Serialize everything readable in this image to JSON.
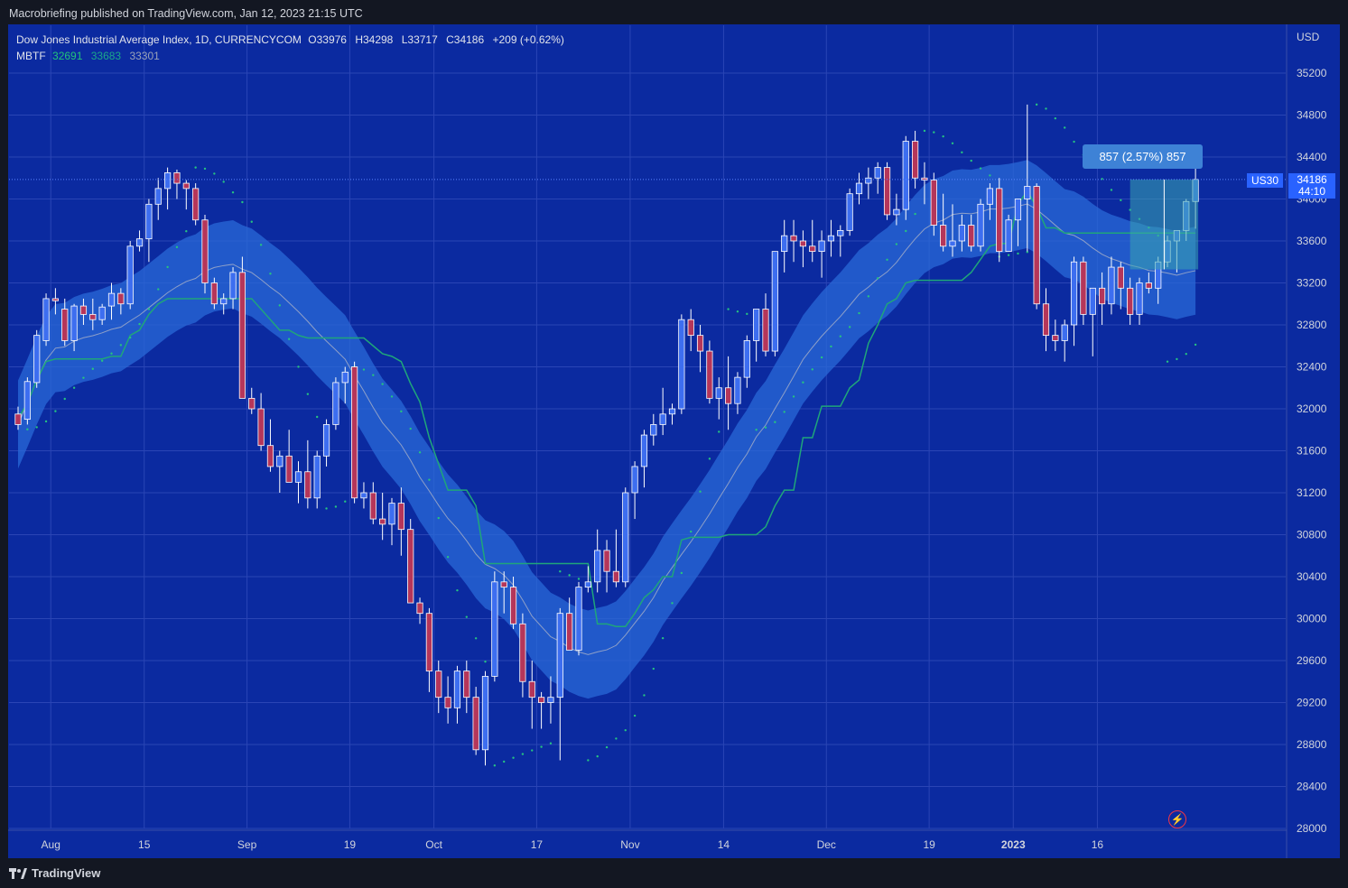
{
  "header": {
    "published": "Macrobriefing published on TradingView.com, Jan 12, 2023 21:15 UTC"
  },
  "legend": {
    "title": "Dow Jones Industrial Average Index, 1D, CURRENCYCOM",
    "o_label": "O",
    "o": "33976",
    "h_label": "H",
    "h": "34298",
    "l_label": "L",
    "l": "33717",
    "c_label": "C",
    "c": "34186",
    "change": "+209 (+0.62%)",
    "indicator": "MBTF",
    "ind_v1": "32691",
    "ind_v2": "33683",
    "ind_v3": "33301"
  },
  "axis": {
    "currency": "USD"
  },
  "price_tag": {
    "symbol": "US30",
    "price": "34186",
    "countdown": "44:10"
  },
  "measure": {
    "label": "857 (2.57%) 857"
  },
  "footer": {
    "brand": "TradingView"
  },
  "colors": {
    "background": "#0b2aa0",
    "up": "#3d6ef0",
    "down": "#b5365a",
    "band": "#2a6ad8",
    "green_line": "#1fa67a",
    "dots": "#26c281"
  },
  "chart_data": {
    "type": "candlestick",
    "title": "Dow Jones Industrial Average Index, 1D, CURRENCYCOM",
    "ylim": [
      28000,
      35400
    ],
    "y_ticks": [
      28000,
      28400,
      28800,
      29200,
      29600,
      30000,
      30400,
      30800,
      31200,
      31600,
      32000,
      32400,
      32800,
      33200,
      33600,
      34000,
      34400,
      34800,
      35200
    ],
    "x_labels": [
      "Aug",
      "15",
      "Sep",
      "19",
      "Oct",
      "17",
      "Nov",
      "14",
      "Dec",
      "19",
      "2023",
      "16"
    ],
    "x_label_idx": [
      3.5,
      13.5,
      24.5,
      35.5,
      44.5,
      55.5,
      65.5,
      75.5,
      86.5,
      97.5,
      106.5,
      115.5
    ],
    "candles": [
      [
        31950,
        32020,
        31800,
        31850
      ],
      [
        31900,
        32300,
        31850,
        32260
      ],
      [
        32250,
        32750,
        32200,
        32700
      ],
      [
        32650,
        33100,
        32600,
        33050
      ],
      [
        33050,
        33150,
        32900,
        33030
      ],
      [
        32950,
        33050,
        32600,
        32650
      ],
      [
        32650,
        33000,
        32550,
        32980
      ],
      [
        32980,
        33050,
        32800,
        32900
      ],
      [
        32900,
        33050,
        32750,
        32850
      ],
      [
        32850,
        33000,
        32800,
        32970
      ],
      [
        32980,
        33200,
        32850,
        33100
      ],
      [
        33100,
        33150,
        32900,
        33000
      ],
      [
        33000,
        33600,
        32950,
        33550
      ],
      [
        33550,
        33700,
        33500,
        33620
      ],
      [
        33620,
        34000,
        33400,
        33950
      ],
      [
        33950,
        34200,
        33800,
        34100
      ],
      [
        34100,
        34300,
        33900,
        34250
      ],
      [
        34250,
        34280,
        34000,
        34150
      ],
      [
        34150,
        34180,
        33900,
        34100
      ],
      [
        34100,
        34150,
        33750,
        33800
      ],
      [
        33800,
        33850,
        33100,
        33200
      ],
      [
        33200,
        33250,
        32950,
        33000
      ],
      [
        33000,
        33100,
        32900,
        33050
      ],
      [
        33050,
        33350,
        32950,
        33300
      ],
      [
        33300,
        33450,
        32100,
        32100
      ],
      [
        32100,
        32200,
        31950,
        32000
      ],
      [
        32000,
        32150,
        31600,
        31650
      ],
      [
        31650,
        31900,
        31400,
        31450
      ],
      [
        31450,
        31600,
        31200,
        31550
      ],
      [
        31550,
        31800,
        31300,
        31300
      ],
      [
        31300,
        31500,
        31100,
        31400
      ],
      [
        31400,
        31700,
        31050,
        31150
      ],
      [
        31150,
        31600,
        31050,
        31550
      ],
      [
        31550,
        31900,
        31450,
        31850
      ],
      [
        31850,
        32300,
        31800,
        32250
      ],
      [
        32250,
        32400,
        32050,
        32350
      ],
      [
        32400,
        32450,
        31100,
        31150
      ],
      [
        31150,
        31300,
        31050,
        31200
      ],
      [
        31200,
        31300,
        30900,
        30950
      ],
      [
        30950,
        31200,
        30750,
        30900
      ],
      [
        30900,
        31150,
        30700,
        31100
      ],
      [
        31100,
        31250,
        30600,
        30850
      ],
      [
        30850,
        30950,
        30200,
        30150
      ],
      [
        30150,
        30200,
        29950,
        30050
      ],
      [
        30050,
        30100,
        29300,
        29500
      ],
      [
        29500,
        29600,
        29100,
        29250
      ],
      [
        29250,
        29450,
        29000,
        29150
      ],
      [
        29150,
        29550,
        29000,
        29500
      ],
      [
        29500,
        29600,
        29100,
        29250
      ],
      [
        29250,
        29350,
        28700,
        28750
      ],
      [
        28750,
        29500,
        28600,
        29450
      ],
      [
        29450,
        30450,
        29400,
        30350
      ],
      [
        30350,
        30450,
        30050,
        30300
      ],
      [
        30300,
        30400,
        29900,
        29950
      ],
      [
        29950,
        30050,
        29250,
        29400
      ],
      [
        29400,
        29600,
        28950,
        29250
      ],
      [
        29250,
        29300,
        28950,
        29200
      ],
      [
        29200,
        29450,
        29000,
        29250
      ],
      [
        29250,
        30100,
        28650,
        30050
      ],
      [
        30050,
        30200,
        29700,
        29700
      ],
      [
        29700,
        30350,
        29650,
        30300
      ],
      [
        30300,
        30500,
        30250,
        30350
      ],
      [
        30350,
        30850,
        30250,
        30650
      ],
      [
        30650,
        30750,
        30250,
        30450
      ],
      [
        30450,
        30850,
        30300,
        30350
      ],
      [
        30350,
        31250,
        30300,
        31200
      ],
      [
        31200,
        31500,
        30950,
        31450
      ],
      [
        31450,
        31800,
        31250,
        31750
      ],
      [
        31750,
        31950,
        31650,
        31850
      ],
      [
        31850,
        32200,
        31750,
        31950
      ],
      [
        31950,
        32050,
        31850,
        32000
      ],
      [
        32000,
        32900,
        31950,
        32850
      ],
      [
        32850,
        32950,
        32550,
        32700
      ],
      [
        32700,
        32800,
        32350,
        32550
      ],
      [
        32550,
        32650,
        32050,
        32100
      ],
      [
        32100,
        32300,
        31900,
        32200
      ],
      [
        32200,
        32500,
        31800,
        32050
      ],
      [
        32050,
        32350,
        31950,
        32300
      ],
      [
        32300,
        32700,
        32200,
        32650
      ],
      [
        32650,
        32900,
        32450,
        32950
      ],
      [
        32950,
        33100,
        32500,
        32550
      ],
      [
        32550,
        33500,
        32500,
        33500
      ],
      [
        33500,
        33800,
        33300,
        33650
      ],
      [
        33650,
        33800,
        33400,
        33600
      ],
      [
        33600,
        33700,
        33350,
        33550
      ],
      [
        33550,
        33800,
        33400,
        33500
      ],
      [
        33500,
        33700,
        33250,
        33600
      ],
      [
        33600,
        33800,
        33450,
        33650
      ],
      [
        33650,
        33750,
        33450,
        33700
      ],
      [
        33700,
        34100,
        33650,
        34050
      ],
      [
        34050,
        34250,
        33950,
        34150
      ],
      [
        34150,
        34300,
        34000,
        34200
      ],
      [
        34200,
        34350,
        34050,
        34300
      ],
      [
        34300,
        34350,
        33800,
        33850
      ],
      [
        33850,
        34050,
        33750,
        33900
      ],
      [
        33900,
        34600,
        33800,
        34550
      ],
      [
        34550,
        34650,
        34100,
        34200
      ],
      [
        34200,
        34350,
        33950,
        34180
      ],
      [
        34180,
        34250,
        33650,
        33750
      ],
      [
        33750,
        34050,
        33500,
        33550
      ],
      [
        33550,
        33950,
        33450,
        33600
      ],
      [
        33600,
        33850,
        33500,
        33750
      ],
      [
        33750,
        33850,
        33500,
        33550
      ],
      [
        33550,
        34000,
        33500,
        33950
      ],
      [
        33950,
        34150,
        33800,
        34100
      ],
      [
        34100,
        34200,
        33400,
        33500
      ],
      [
        33500,
        33850,
        33500,
        33800
      ],
      [
        33800,
        34000,
        33550,
        34000
      ],
      [
        34000,
        34900,
        33500,
        34120
      ],
      [
        34120,
        34150,
        32950,
        33000
      ],
      [
        33000,
        33150,
        32550,
        32700
      ],
      [
        32700,
        32850,
        32550,
        32650
      ],
      [
        32650,
        32850,
        32450,
        32800
      ],
      [
        32800,
        33450,
        32600,
        33400
      ],
      [
        33400,
        33450,
        32800,
        32900
      ],
      [
        32900,
        33100,
        32500,
        33150
      ],
      [
        33150,
        33300,
        32800,
        33000
      ],
      [
        33000,
        33450,
        32900,
        33350
      ],
      [
        33350,
        33400,
        32950,
        33150
      ],
      [
        33150,
        33250,
        32800,
        32900
      ],
      [
        32900,
        33250,
        32800,
        33200
      ],
      [
        33200,
        33300,
        33100,
        33150
      ]
    ],
    "candles_tail": [
      [
        33150,
        33450,
        33000,
        33400
      ],
      [
        33400,
        33650,
        33350,
        33600
      ],
      [
        33600,
        33700,
        33300,
        33700
      ],
      [
        33700,
        34000,
        33600,
        33976
      ],
      [
        33976,
        34298,
        33717,
        34186
      ]
    ]
  }
}
